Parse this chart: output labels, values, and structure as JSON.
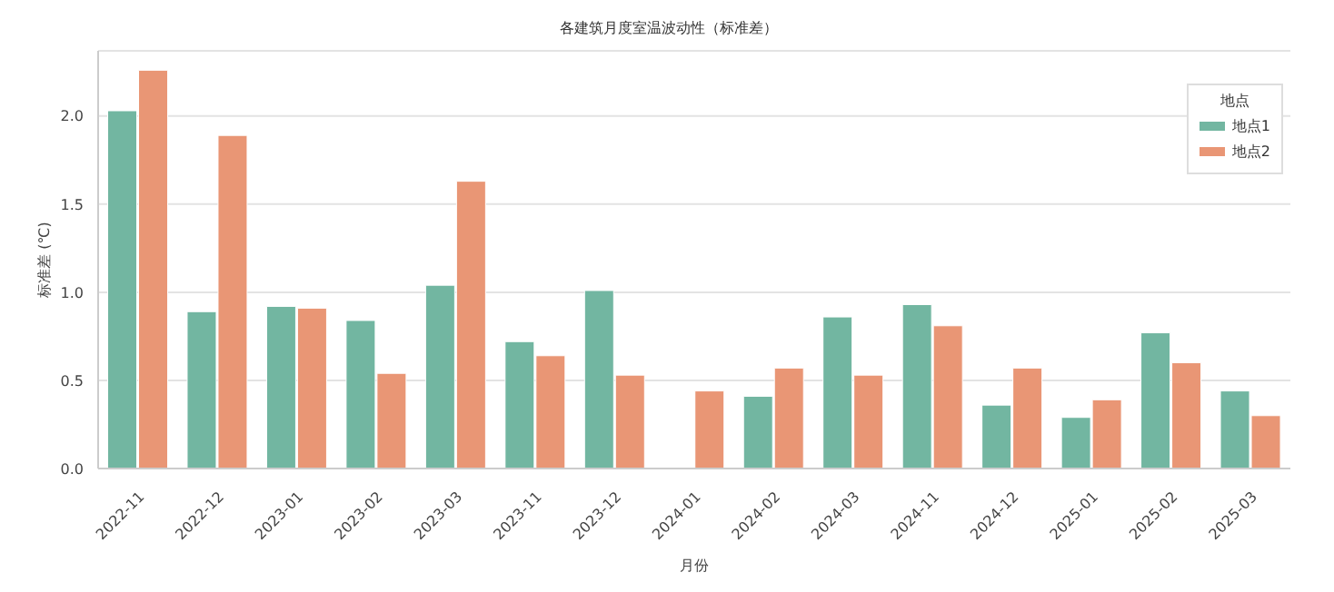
{
  "chart_data": {
    "type": "bar",
    "title": "各建筑月度室温波动性（标准差）",
    "xlabel": "月份",
    "ylabel": "标准差 (℃)",
    "legend_title": "地点",
    "categories": [
      "2022-11",
      "2022-12",
      "2023-01",
      "2023-02",
      "2023-03",
      "2023-11",
      "2023-12",
      "2024-01",
      "2024-02",
      "2024-03",
      "2024-11",
      "2024-12",
      "2025-01",
      "2025-02",
      "2025-03"
    ],
    "series": [
      {
        "name": "地点1",
        "color": "#72b6a1",
        "values": [
          2.03,
          0.89,
          0.92,
          0.84,
          1.04,
          0.72,
          1.01,
          null,
          0.41,
          0.86,
          0.93,
          0.36,
          0.29,
          0.77,
          0.44
        ]
      },
      {
        "name": "地点2",
        "color": "#e99675",
        "values": [
          2.26,
          1.89,
          0.91,
          0.54,
          1.63,
          0.64,
          0.53,
          0.44,
          0.57,
          0.53,
          0.81,
          0.57,
          0.39,
          0.6,
          0.3
        ]
      }
    ],
    "ylim": [
      0,
      2.37
    ],
    "yticks": [
      {
        "value": 0,
        "label": "0.0"
      },
      {
        "value": 0.5,
        "label": "0.5"
      },
      {
        "value": 1,
        "label": "1.0"
      },
      {
        "value": 1.5,
        "label": "1.5"
      },
      {
        "value": 2,
        "label": "2.0"
      }
    ],
    "grid": "y",
    "legend": "top right"
  }
}
